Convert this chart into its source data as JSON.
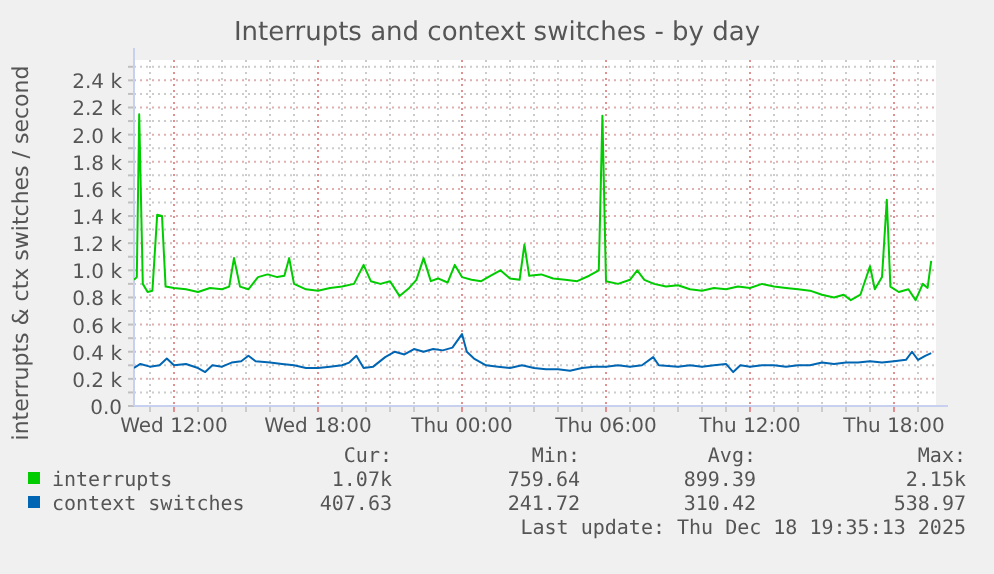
{
  "chart_data": {
    "type": "line",
    "title": "Interrupts and context switches - by day",
    "ylabel": "interrupts & ctx switches / second",
    "legend": "bottom",
    "grid": true,
    "marker": "none",
    "line_style": "solid",
    "xlim": [
      "2025-12-17T10:20",
      "2025-12-18T19:45"
    ],
    "xticks": [
      {
        "value": "2025-12-17T11:00",
        "label": null
      },
      {
        "value": "2025-12-17T12:00",
        "label": "Wed 12:00"
      },
      {
        "value": "2025-12-17T13:00",
        "label": null
      },
      {
        "value": "2025-12-17T14:00",
        "label": null
      },
      {
        "value": "2025-12-17T15:00",
        "label": null
      },
      {
        "value": "2025-12-17T16:00",
        "label": null
      },
      {
        "value": "2025-12-17T17:00",
        "label": null
      },
      {
        "value": "2025-12-17T18:00",
        "label": "Wed 18:00"
      },
      {
        "value": "2025-12-17T19:00",
        "label": null
      },
      {
        "value": "2025-12-17T20:00",
        "label": null
      },
      {
        "value": "2025-12-17T21:00",
        "label": null
      },
      {
        "value": "2025-12-17T22:00",
        "label": null
      },
      {
        "value": "2025-12-17T23:00",
        "label": null
      },
      {
        "value": "2025-12-18T00:00",
        "label": "Thu 00:00"
      },
      {
        "value": "2025-12-18T01:00",
        "label": null
      },
      {
        "value": "2025-12-18T02:00",
        "label": null
      },
      {
        "value": "2025-12-18T03:00",
        "label": null
      },
      {
        "value": "2025-12-18T04:00",
        "label": null
      },
      {
        "value": "2025-12-18T05:00",
        "label": null
      },
      {
        "value": "2025-12-18T06:00",
        "label": "Thu 06:00"
      },
      {
        "value": "2025-12-18T07:00",
        "label": null
      },
      {
        "value": "2025-12-18T08:00",
        "label": null
      },
      {
        "value": "2025-12-18T09:00",
        "label": null
      },
      {
        "value": "2025-12-18T10:00",
        "label": null
      },
      {
        "value": "2025-12-18T11:00",
        "label": null
      },
      {
        "value": "2025-12-18T12:00",
        "label": "Thu 12:00"
      },
      {
        "value": "2025-12-18T13:00",
        "label": null
      },
      {
        "value": "2025-12-18T14:00",
        "label": null
      },
      {
        "value": "2025-12-18T15:00",
        "label": null
      },
      {
        "value": "2025-12-18T16:00",
        "label": null
      },
      {
        "value": "2025-12-18T17:00",
        "label": null
      },
      {
        "value": "2025-12-18T18:00",
        "label": "Thu 18:00"
      },
      {
        "value": "2025-12-18T19:00",
        "label": null
      }
    ],
    "ylim": [
      0,
      2550
    ],
    "yticks": [
      {
        "value": 0,
        "label": "0.0"
      },
      {
        "value": 100,
        "label": null
      },
      {
        "value": 200,
        "label": "0.2 k"
      },
      {
        "value": 300,
        "label": null
      },
      {
        "value": 400,
        "label": "0.4 k"
      },
      {
        "value": 500,
        "label": null
      },
      {
        "value": 600,
        "label": "0.6 k"
      },
      {
        "value": 700,
        "label": null
      },
      {
        "value": 800,
        "label": "0.8 k"
      },
      {
        "value": 900,
        "label": null
      },
      {
        "value": 1000,
        "label": "1.0 k"
      },
      {
        "value": 1100,
        "label": null
      },
      {
        "value": 1200,
        "label": "1.2 k"
      },
      {
        "value": 1300,
        "label": null
      },
      {
        "value": 1400,
        "label": "1.4 k"
      },
      {
        "value": 1500,
        "label": null
      },
      {
        "value": 1600,
        "label": "1.6 k"
      },
      {
        "value": 1700,
        "label": null
      },
      {
        "value": 1800,
        "label": "1.8 k"
      },
      {
        "value": 1900,
        "label": null
      },
      {
        "value": 2000,
        "label": "2.0 k"
      },
      {
        "value": 2100,
        "label": null
      },
      {
        "value": 2200,
        "label": "2.2 k"
      },
      {
        "value": 2300,
        "label": null
      },
      {
        "value": 2400,
        "label": "2.4 k"
      },
      {
        "value": 2500,
        "label": null
      }
    ],
    "series": [
      {
        "name": "interrupts",
        "color": "#00cc00",
        "x": [
          "2025-12-17T10:20",
          "2025-12-17T10:27",
          "2025-12-17T10:33",
          "2025-12-17T10:42",
          "2025-12-17T10:54",
          "2025-12-17T11:06",
          "2025-12-17T11:18",
          "2025-12-17T11:30",
          "2025-12-17T11:39",
          "2025-12-17T12:00",
          "2025-12-17T12:30",
          "2025-12-17T13:00",
          "2025-12-17T13:30",
          "2025-12-17T14:00",
          "2025-12-17T14:18",
          "2025-12-17T14:30",
          "2025-12-17T14:45",
          "2025-12-17T15:06",
          "2025-12-17T15:30",
          "2025-12-17T15:54",
          "2025-12-17T16:18",
          "2025-12-17T16:36",
          "2025-12-17T16:48",
          "2025-12-17T17:00",
          "2025-12-17T17:30",
          "2025-12-17T18:00",
          "2025-12-17T18:30",
          "2025-12-17T19:00",
          "2025-12-17T19:30",
          "2025-12-17T19:54",
          "2025-12-17T20:12",
          "2025-12-17T20:36",
          "2025-12-17T21:00",
          "2025-12-17T21:24",
          "2025-12-17T21:48",
          "2025-12-17T22:06",
          "2025-12-17T22:24",
          "2025-12-17T22:42",
          "2025-12-17T23:00",
          "2025-12-17T23:24",
          "2025-12-17T23:42",
          "2025-12-18T00:00",
          "2025-12-18T00:24",
          "2025-12-18T00:48",
          "2025-12-18T01:12",
          "2025-12-18T01:36",
          "2025-12-18T02:00",
          "2025-12-18T02:24",
          "2025-12-18T02:36",
          "2025-12-18T02:48",
          "2025-12-18T03:18",
          "2025-12-18T03:48",
          "2025-12-18T04:18",
          "2025-12-18T04:48",
          "2025-12-18T05:18",
          "2025-12-18T05:42",
          "2025-12-18T05:51",
          "2025-12-18T06:00",
          "2025-12-18T06:30",
          "2025-12-18T07:00",
          "2025-12-18T07:18",
          "2025-12-18T07:36",
          "2025-12-18T08:00",
          "2025-12-18T08:30",
          "2025-12-18T09:00",
          "2025-12-18T09:30",
          "2025-12-18T10:00",
          "2025-12-18T10:30",
          "2025-12-18T11:00",
          "2025-12-18T11:30",
          "2025-12-18T12:00",
          "2025-12-18T12:30",
          "2025-12-18T13:00",
          "2025-12-18T13:30",
          "2025-12-18T14:00",
          "2025-12-18T14:30",
          "2025-12-18T15:00",
          "2025-12-18T15:30",
          "2025-12-18T15:54",
          "2025-12-18T16:12",
          "2025-12-18T16:36",
          "2025-12-18T17:00",
          "2025-12-18T17:12",
          "2025-12-18T17:30",
          "2025-12-18T17:42",
          "2025-12-18T17:51",
          "2025-12-18T18:12",
          "2025-12-18T18:36",
          "2025-12-18T18:54",
          "2025-12-18T19:12",
          "2025-12-18T19:24",
          "2025-12-18T19:33"
        ],
        "values": [
          930,
          950,
          2150,
          900,
          840,
          850,
          1410,
          1400,
          880,
          870,
          860,
          840,
          870,
          860,
          880,
          1090,
          880,
          860,
          950,
          970,
          950,
          960,
          1090,
          900,
          860,
          850,
          870,
          880,
          900,
          1040,
          920,
          900,
          920,
          810,
          870,
          930,
          1090,
          920,
          940,
          910,
          1040,
          950,
          930,
          920,
          960,
          1000,
          940,
          930,
          1190,
          960,
          970,
          940,
          930,
          920,
          960,
          1000,
          2140,
          920,
          900,
          930,
          1000,
          930,
          900,
          880,
          890,
          860,
          850,
          870,
          860,
          880,
          870,
          900,
          880,
          870,
          860,
          850,
          820,
          800,
          820,
          780,
          820,
          1030,
          860,
          950,
          1520,
          880,
          840,
          860,
          780,
          900,
          870,
          1070
        ]
      },
      {
        "name": "context switches",
        "color": "#0066b3",
        "x": [
          "2025-12-17T10:20",
          "2025-12-17T10:36",
          "2025-12-17T11:00",
          "2025-12-17T11:24",
          "2025-12-17T11:42",
          "2025-12-17T12:00",
          "2025-12-17T12:30",
          "2025-12-17T13:00",
          "2025-12-17T13:18",
          "2025-12-17T13:36",
          "2025-12-17T14:00",
          "2025-12-17T14:24",
          "2025-12-17T14:48",
          "2025-12-17T15:06",
          "2025-12-17T15:24",
          "2025-12-17T16:00",
          "2025-12-17T16:30",
          "2025-12-17T17:00",
          "2025-12-17T17:30",
          "2025-12-17T18:00",
          "2025-12-17T18:30",
          "2025-12-17T19:00",
          "2025-12-17T19:18",
          "2025-12-17T19:36",
          "2025-12-17T19:54",
          "2025-12-17T20:18",
          "2025-12-17T20:48",
          "2025-12-17T21:12",
          "2025-12-17T21:36",
          "2025-12-17T22:00",
          "2025-12-17T22:24",
          "2025-12-17T22:48",
          "2025-12-17T23:12",
          "2025-12-17T23:36",
          "2025-12-18T00:00",
          "2025-12-18T00:12",
          "2025-12-18T00:30",
          "2025-12-18T01:00",
          "2025-12-18T01:30",
          "2025-12-18T02:00",
          "2025-12-18T02:30",
          "2025-12-18T03:00",
          "2025-12-18T03:30",
          "2025-12-18T04:00",
          "2025-12-18T04:30",
          "2025-12-18T05:00",
          "2025-12-18T05:30",
          "2025-12-18T06:00",
          "2025-12-18T06:30",
          "2025-12-18T07:00",
          "2025-12-18T07:30",
          "2025-12-18T07:58",
          "2025-12-18T08:12",
          "2025-12-18T09:00",
          "2025-12-18T09:30",
          "2025-12-18T10:00",
          "2025-12-18T10:30",
          "2025-12-18T11:00",
          "2025-12-18T11:18",
          "2025-12-18T11:36",
          "2025-12-18T12:00",
          "2025-12-18T12:30",
          "2025-12-18T13:00",
          "2025-12-18T13:30",
          "2025-12-18T14:00",
          "2025-12-18T14:30",
          "2025-12-18T15:00",
          "2025-12-18T15:30",
          "2025-12-18T16:00",
          "2025-12-18T16:30",
          "2025-12-18T17:00",
          "2025-12-18T17:30",
          "2025-12-18T18:00",
          "2025-12-18T18:30",
          "2025-12-18T18:45",
          "2025-12-18T19:00",
          "2025-12-18T19:18",
          "2025-12-18T19:33"
        ],
        "values": [
          280,
          310,
          290,
          300,
          350,
          300,
          310,
          280,
          250,
          300,
          290,
          320,
          330,
          370,
          330,
          320,
          310,
          300,
          280,
          280,
          290,
          300,
          320,
          370,
          280,
          290,
          360,
          400,
          380,
          420,
          400,
          420,
          410,
          430,
          530,
          400,
          350,
          300,
          290,
          280,
          300,
          280,
          270,
          270,
          260,
          280,
          290,
          290,
          300,
          290,
          300,
          360,
          300,
          290,
          300,
          290,
          300,
          310,
          250,
          300,
          290,
          300,
          300,
          290,
          300,
          300,
          320,
          310,
          320,
          320,
          330,
          320,
          330,
          340,
          400,
          340,
          370,
          390
        ]
      }
    ],
    "annotations": [
      "Cur:",
      "Min:",
      "Avg:",
      "Max:",
      "1.07k",
      "759.64",
      "899.39",
      "2.15k",
      "407.63",
      "241.72",
      "310.42",
      "538.97",
      "Last update: Thu Dec 18 19:35:13 2025"
    ]
  }
}
